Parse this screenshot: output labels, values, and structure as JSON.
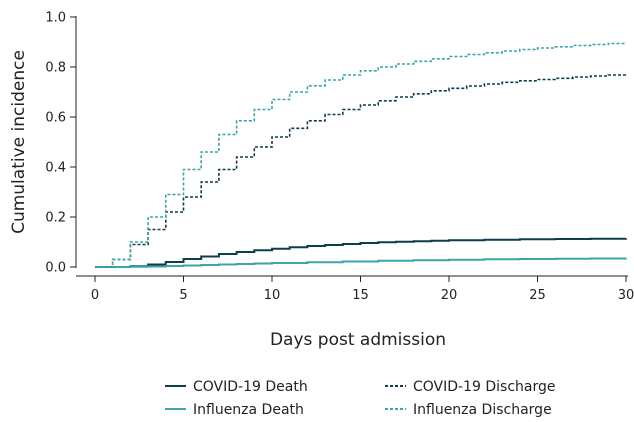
{
  "chart_data": {
    "type": "line",
    "xlabel": "Days post admission",
    "ylabel": "Cumulative incidence",
    "xlim": [
      0,
      30
    ],
    "ylim": [
      0,
      1.0
    ],
    "x_ticks": [
      0,
      5,
      10,
      15,
      20,
      25,
      30
    ],
    "x_tick_labels": [
      "0",
      "5",
      "10",
      "15",
      "20",
      "25",
      "30"
    ],
    "y_ticks": [
      0,
      0.2,
      0.4,
      0.6,
      0.8,
      1.0
    ],
    "y_tick_labels": [
      "0.0",
      "0.2",
      "0.4",
      "0.6",
      "0.8",
      "1.0"
    ],
    "grid": false,
    "legend_position": "bottom",
    "series": [
      {
        "name": "COVID-19 Death",
        "color": "#0f3d4c",
        "style": "solid",
        "x": [
          0,
          1,
          2,
          3,
          4,
          5,
          6,
          7,
          8,
          9,
          10,
          11,
          12,
          13,
          14,
          15,
          16,
          17,
          18,
          19,
          20,
          22,
          24,
          26,
          28,
          30
        ],
        "y": [
          0,
          0,
          0.003,
          0.01,
          0.02,
          0.032,
          0.042,
          0.052,
          0.06,
          0.067,
          0.073,
          0.079,
          0.084,
          0.088,
          0.092,
          0.096,
          0.099,
          0.101,
          0.103,
          0.105,
          0.107,
          0.109,
          0.111,
          0.112,
          0.113,
          0.114
        ]
      },
      {
        "name": "Influenza Death",
        "color": "#3aa6a6",
        "style": "solid",
        "x": [
          0,
          1,
          2,
          3,
          4,
          5,
          6,
          7,
          8,
          9,
          10,
          12,
          14,
          16,
          18,
          20,
          22,
          24,
          26,
          28,
          30
        ],
        "y": [
          0,
          0,
          0.001,
          0.002,
          0.004,
          0.006,
          0.008,
          0.01,
          0.012,
          0.014,
          0.016,
          0.019,
          0.022,
          0.025,
          0.027,
          0.029,
          0.031,
          0.032,
          0.033,
          0.034,
          0.035
        ]
      },
      {
        "name": "COVID-19 Discharge",
        "color": "#0f3d4c",
        "style": "dashed",
        "x": [
          0,
          1,
          2,
          3,
          4,
          5,
          6,
          7,
          8,
          9,
          10,
          11,
          12,
          13,
          14,
          15,
          16,
          17,
          18,
          19,
          20,
          21,
          22,
          23,
          24,
          25,
          26,
          27,
          28,
          29,
          30
        ],
        "y": [
          0,
          0.03,
          0.09,
          0.15,
          0.22,
          0.28,
          0.34,
          0.39,
          0.44,
          0.48,
          0.52,
          0.555,
          0.585,
          0.61,
          0.63,
          0.648,
          0.665,
          0.68,
          0.693,
          0.705,
          0.715,
          0.724,
          0.732,
          0.739,
          0.745,
          0.75,
          0.755,
          0.76,
          0.764,
          0.768,
          0.771
        ]
      },
      {
        "name": "Influenza Discharge",
        "color": "#3aa6a6",
        "style": "dashed",
        "x": [
          0,
          1,
          2,
          3,
          4,
          5,
          6,
          7,
          8,
          9,
          10,
          11,
          12,
          13,
          14,
          15,
          16,
          17,
          18,
          19,
          20,
          21,
          22,
          23,
          24,
          25,
          26,
          27,
          28,
          29,
          30
        ],
        "y": [
          0,
          0.03,
          0.1,
          0.2,
          0.29,
          0.39,
          0.46,
          0.53,
          0.585,
          0.63,
          0.67,
          0.7,
          0.725,
          0.748,
          0.768,
          0.785,
          0.8,
          0.812,
          0.823,
          0.833,
          0.842,
          0.85,
          0.857,
          0.864,
          0.87,
          0.876,
          0.881,
          0.886,
          0.89,
          0.894,
          0.897
        ]
      }
    ]
  }
}
